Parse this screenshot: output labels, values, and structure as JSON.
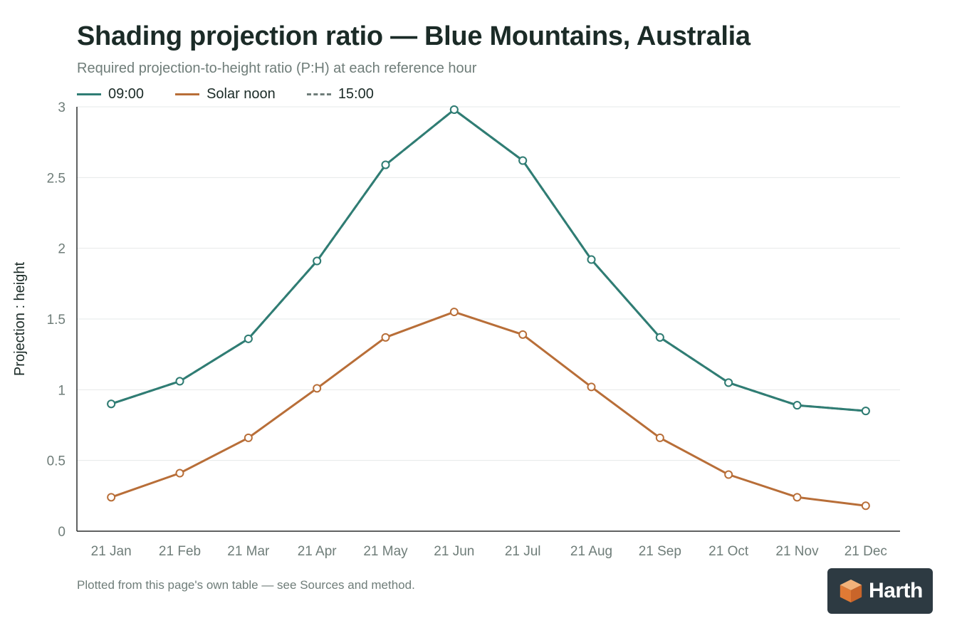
{
  "chart_data": {
    "type": "line",
    "title": "Shading projection ratio — Blue Mountains, Australia",
    "subtitle": "Required projection-to-height ratio (P:H) at each reference hour",
    "xlabel": "",
    "ylabel": "Projection : height",
    "ylim": [
      0,
      3
    ],
    "yticks": [
      "0",
      "0.5",
      "1",
      "1.5",
      "2",
      "2.5",
      "3"
    ],
    "grid": true,
    "legend_position": "top-left",
    "categories": [
      "21 Jan",
      "21 Feb",
      "21 Mar",
      "21 Apr",
      "21 May",
      "21 Jun",
      "21 Jul",
      "21 Aug",
      "21 Sep",
      "21 Oct",
      "21 Nov",
      "21 Dec"
    ],
    "series": [
      {
        "name": "09:00",
        "color": "#2f7d74",
        "dash": "solid",
        "values": [
          0.9,
          1.06,
          1.36,
          1.91,
          2.59,
          2.98,
          2.62,
          1.92,
          1.37,
          1.05,
          0.89,
          0.85
        ]
      },
      {
        "name": "Solar noon",
        "color": "#b86e38",
        "dash": "solid",
        "values": [
          0.24,
          0.41,
          0.66,
          1.01,
          1.37,
          1.55,
          1.39,
          1.02,
          0.66,
          0.4,
          0.24,
          0.18
        ]
      },
      {
        "name": "15:00",
        "color": "#6f7d79",
        "dash": "dashed",
        "values": [
          0.9,
          1.06,
          1.36,
          1.91,
          2.59,
          2.98,
          2.62,
          1.92,
          1.37,
          1.05,
          0.89,
          0.85
        ]
      }
    ]
  },
  "footnote": "Plotted from this page's own table — see Sources and method.",
  "logo": {
    "text": "Harth",
    "icon": "harth-cube-logo"
  }
}
